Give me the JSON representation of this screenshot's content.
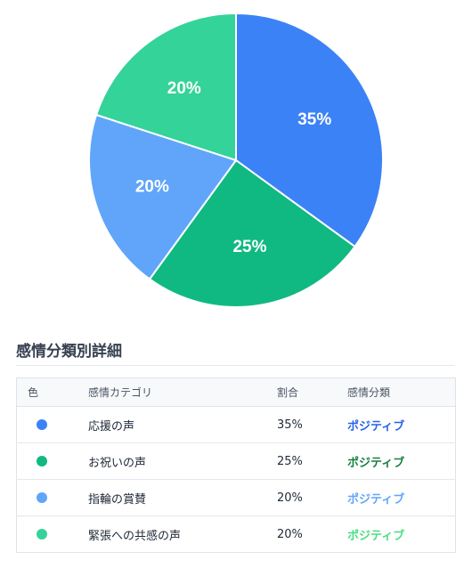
{
  "chart_data": {
    "type": "pie",
    "title": "",
    "slices": [
      {
        "label": "応援の声",
        "value": 35,
        "display": "35%",
        "color": "#3b82f6"
      },
      {
        "label": "お祝いの声",
        "value": 25,
        "display": "25%",
        "color": "#10b981"
      },
      {
        "label": "指輪の賞賛",
        "value": 20,
        "display": "20%",
        "color": "#60a5fa"
      },
      {
        "label": "緊張への共感の声",
        "value": 20,
        "display": "20%",
        "color": "#34d399"
      }
    ]
  },
  "detail": {
    "title": "感情分類別詳細",
    "headers": {
      "color": "色",
      "category": "感情カテゴリ",
      "ratio": "割合",
      "sentiment": "感情分類"
    },
    "rows": [
      {
        "color": "#3b82f6",
        "category": "応援の声",
        "ratio": "35%",
        "sentiment": "ポジティブ",
        "sentiment_color": "#2563eb"
      },
      {
        "color": "#10b981",
        "category": "お祝いの声",
        "ratio": "25%",
        "sentiment": "ポジティブ",
        "sentiment_color": "#15803d"
      },
      {
        "color": "#60a5fa",
        "category": "指輪の賞賛",
        "ratio": "20%",
        "sentiment": "ポジティブ",
        "sentiment_color": "#60a5fa"
      },
      {
        "color": "#34d399",
        "category": "緊張への共感の声",
        "ratio": "20%",
        "sentiment": "ポジティブ",
        "sentiment_color": "#4ade80"
      }
    ]
  }
}
